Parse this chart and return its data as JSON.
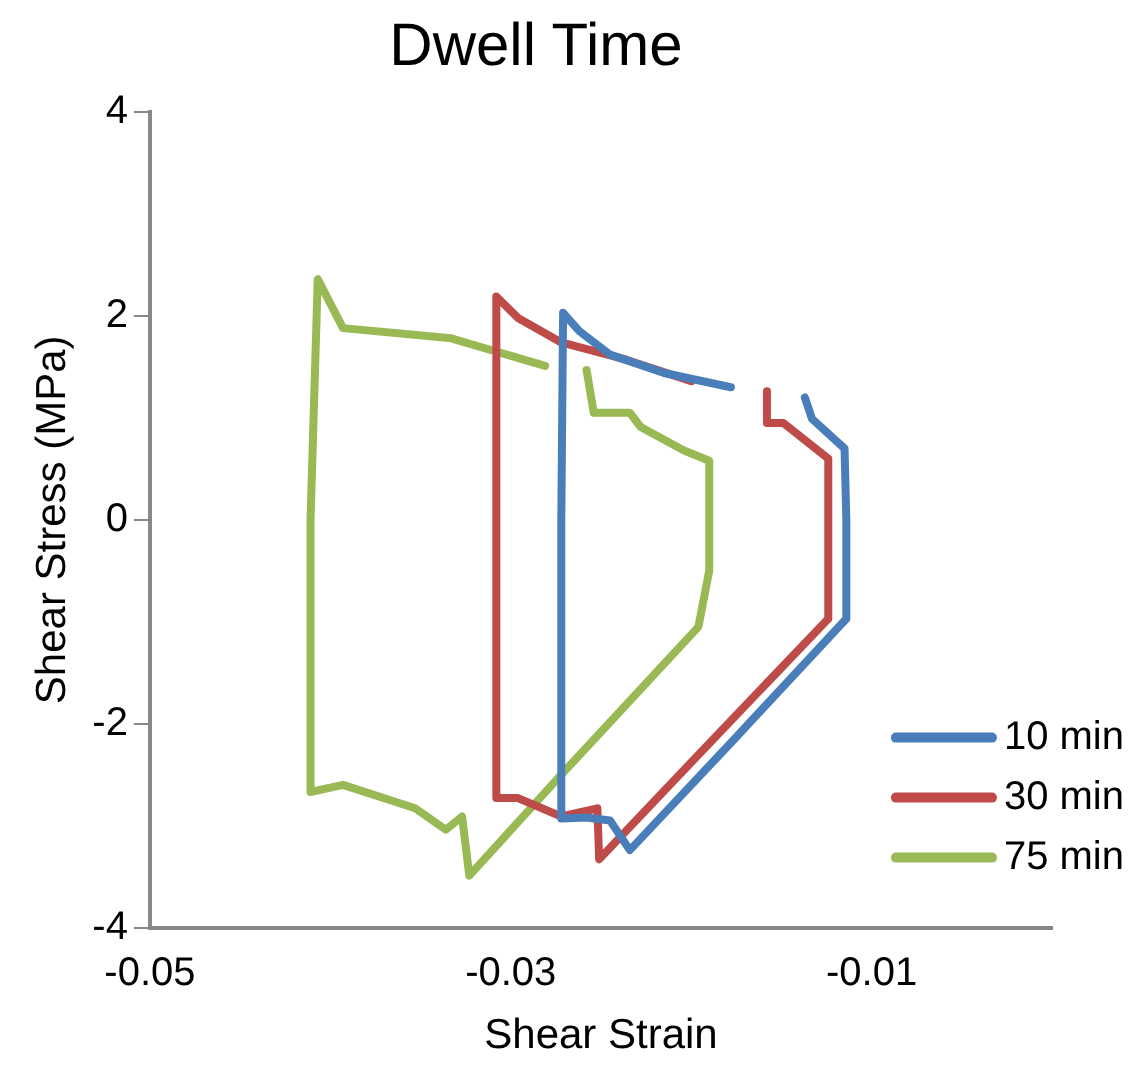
{
  "chart_data": {
    "type": "line",
    "title": "Dwell Time",
    "xlabel": "Shear Strain",
    "ylabel": "Shear Stress (MPa)",
    "xlim": [
      -0.05,
      0
    ],
    "xticks": [
      -0.05,
      -0.03,
      -0.01
    ],
    "ylim": [
      -4,
      4
    ],
    "yticks": [
      -4,
      -2,
      0,
      2,
      4
    ],
    "grid": false,
    "legend": "bottom right",
    "marker": "none",
    "line_style": "solid",
    "series": [
      {
        "name": "10 min",
        "color": "#4a7ebb",
        "x": [
          -0.0137,
          -0.0133,
          -0.0115,
          -0.0114,
          -0.0114,
          -0.0176,
          -0.0234,
          -0.0245,
          -0.0258,
          -0.0272,
          -0.0272,
          -0.0271,
          -0.0262,
          -0.0245,
          -0.0215,
          -0.0178
        ],
        "values": [
          1.2,
          0.99,
          0.7,
          0,
          -0.97,
          -2.15,
          -3.24,
          -2.95,
          -2.92,
          -2.93,
          0,
          2.03,
          1.85,
          1.62,
          1.44,
          1.3
        ]
      },
      {
        "name": "30 min",
        "color": "#be4b48",
        "x": [
          -0.0158,
          -0.0158,
          -0.0149,
          -0.0124,
          -0.0124,
          -0.0185,
          -0.0251,
          -0.0252,
          -0.0272,
          -0.0296,
          -0.0308,
          -0.0308,
          -0.0308,
          -0.0296,
          -0.0272,
          -0.0236,
          -0.02
        ],
        "values": [
          1.26,
          0.95,
          0.95,
          0.6,
          -0.97,
          -2.1,
          -3.33,
          -2.83,
          -2.91,
          -2.73,
          -2.73,
          0,
          2.19,
          1.98,
          1.74,
          1.57,
          1.36
        ]
      },
      {
        "name": "75 min",
        "color": "#98b954",
        "x": [
          -0.0281,
          -0.0333,
          -0.0393,
          -0.0407,
          -0.0411,
          -0.0411,
          -0.0393,
          -0.0353,
          -0.0336,
          -0.0327,
          -0.0323,
          -0.0272,
          -0.0196,
          -0.019,
          -0.019,
          -0.0204,
          -0.0228,
          -0.0234,
          -0.0254,
          -0.0258
        ],
        "values": [
          1.51,
          1.78,
          1.88,
          2.36,
          0,
          -2.67,
          -2.6,
          -2.83,
          -3.04,
          -2.91,
          -3.49,
          -2.5,
          -1.05,
          -0.5,
          0.58,
          0.68,
          0.91,
          1.05,
          1.05,
          1.47
        ]
      }
    ]
  }
}
